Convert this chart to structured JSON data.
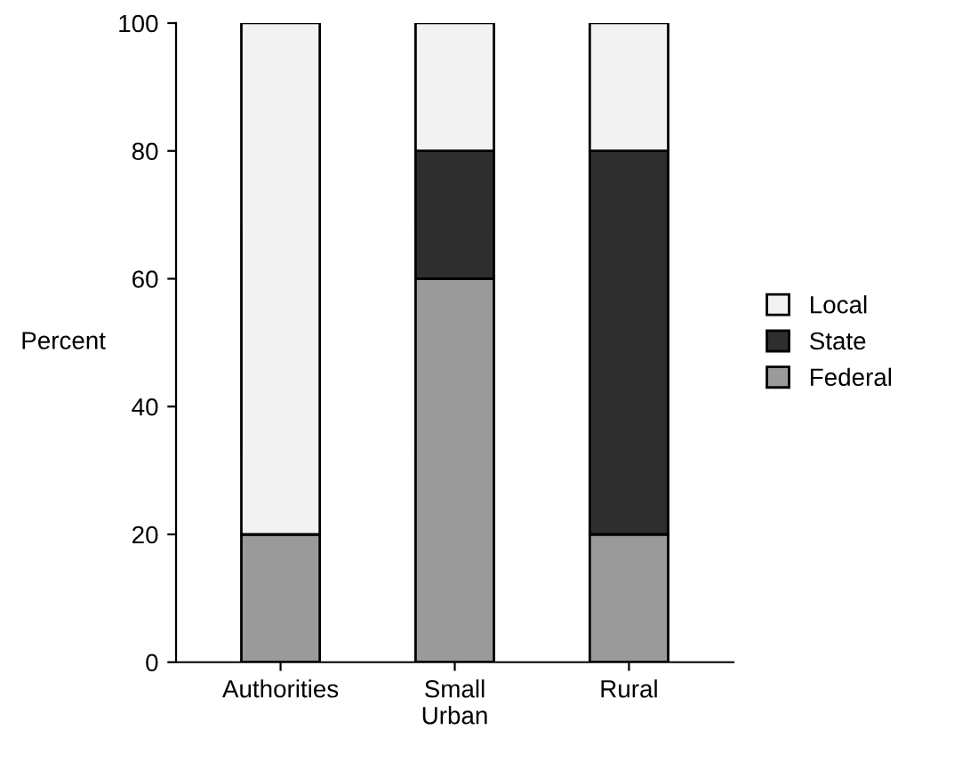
{
  "chart_data": {
    "type": "bar",
    "stacked": true,
    "ylabel": "Percent",
    "categories": [
      "Authorities",
      "Small\nUrban",
      "Rural"
    ],
    "series": [
      {
        "name": "Federal",
        "color": "#9a9a9a",
        "values": [
          20,
          60,
          20
        ]
      },
      {
        "name": "State",
        "color": "#2e2e2e",
        "values": [
          0,
          20,
          60
        ]
      },
      {
        "name": "Local",
        "color": "#f2f2f2",
        "values": [
          80,
          20,
          20
        ]
      }
    ],
    "ylim": [
      0,
      100
    ],
    "yticks": [
      0,
      20,
      40,
      60,
      80,
      100
    ],
    "grid": false,
    "legend": "right"
  }
}
